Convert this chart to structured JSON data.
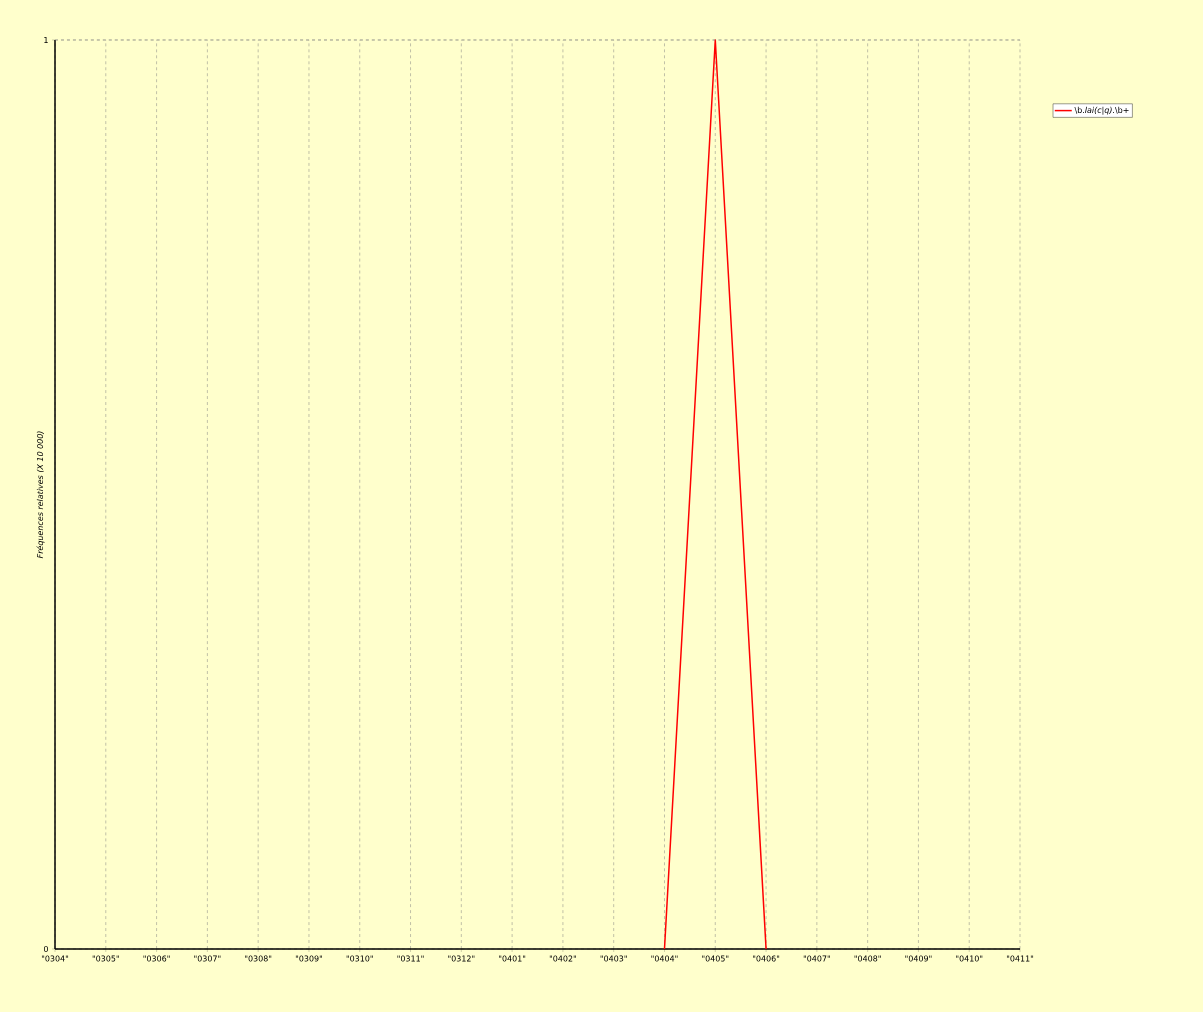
{
  "chart_data": {
    "type": "line",
    "ylabel": "Fréquences relatives (X 10 000)",
    "categories": [
      "\"0304\"",
      "\"0305\"",
      "\"0306\"",
      "\"0307\"",
      "\"0308\"",
      "\"0309\"",
      "\"0310\"",
      "\"0311\"",
      "\"0312\"",
      "\"0401\"",
      "\"0402\"",
      "\"0403\"",
      "\"0404\"",
      "\"0405\"",
      "\"0406\"",
      "\"0407\"",
      "\"0408\"",
      "\"0409\"",
      "\"0410\"",
      "\"0411\""
    ],
    "series": [
      {
        "name": "\\b.*lai(c|q).*\\b+",
        "color": "#ff0000",
        "values": [
          null,
          null,
          null,
          null,
          null,
          null,
          null,
          null,
          null,
          null,
          null,
          null,
          0,
          1,
          0,
          null,
          null,
          null,
          null,
          null
        ]
      }
    ],
    "ylim": [
      0,
      1
    ],
    "yticks": [
      0,
      1
    ],
    "grid": true,
    "legend": "top right",
    "marker": "none",
    "line_style": "solid"
  }
}
